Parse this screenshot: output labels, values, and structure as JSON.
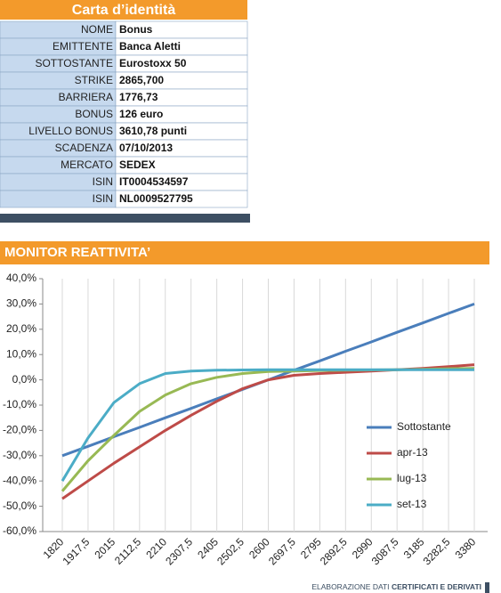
{
  "table": {
    "title": "Carta d’identità",
    "rows": [
      [
        "NOME",
        "Bonus"
      ],
      [
        "EMITTENTE",
        "Banca Aletti"
      ],
      [
        "SOTTOSTANTE",
        "Eurostoxx 50"
      ],
      [
        "STRIKE",
        "2865,700"
      ],
      [
        "BARRIERA",
        "1776,73"
      ],
      [
        "BONUS",
        "126 euro"
      ],
      [
        "LIVELLO BONUS",
        "3610,78 punti"
      ],
      [
        "SCADENZA",
        "07/10/2013"
      ],
      [
        "MERCATO",
        "SEDEX"
      ],
      [
        "ISIN",
        "IT0004534597"
      ],
      [
        "ISIN",
        "NL0009527795"
      ]
    ]
  },
  "chart_data": {
    "type": "line",
    "title": "MONITOR REATTIVITA’",
    "categories": [
      "1820",
      "1917,5",
      "2015",
      "2112,5",
      "2210",
      "2307,5",
      "2405",
      "2502,5",
      "2600",
      "2697,5",
      "2795",
      "2892,5",
      "2990",
      "3087,5",
      "3185",
      "3282,5",
      "3380"
    ],
    "series": [
      {
        "name": "Sottostante",
        "color": "#4a7ebb",
        "values": [
          -30,
          -26.3,
          -22.5,
          -18.8,
          -15,
          -11.3,
          -7.5,
          -3.8,
          0,
          3.8,
          7.5,
          11.3,
          15,
          18.8,
          22.5,
          26.3,
          30
        ]
      },
      {
        "name": "apr-13",
        "color": "#be4b48",
        "values": [
          -47,
          -40,
          -33,
          -26.5,
          -20,
          -14,
          -8.5,
          -3.5,
          0,
          1.8,
          2.5,
          3,
          3.5,
          4,
          4.5,
          5.2,
          6
        ]
      },
      {
        "name": "lug-13",
        "color": "#98b954",
        "values": [
          -44,
          -32,
          -22,
          -12.5,
          -6,
          -1.5,
          1,
          2.5,
          3.3,
          3.5,
          3.7,
          3.8,
          3.9,
          4,
          4.2,
          4.4,
          4.5
        ]
      },
      {
        "name": "set-13",
        "color": "#4bacc6",
        "values": [
          -40,
          -23,
          -9,
          -1.5,
          2.5,
          3.5,
          3.8,
          3.9,
          4,
          4,
          4,
          4,
          4,
          4,
          4,
          4,
          4
        ]
      }
    ],
    "ylim": [
      -60,
      40
    ],
    "yticks": [
      {
        "value": 40,
        "label": "40,0%"
      },
      {
        "value": 30,
        "label": "30,0%"
      },
      {
        "value": 20,
        "label": "20,0%"
      },
      {
        "value": 10,
        "label": "10,0%"
      },
      {
        "value": 0,
        "label": "0,0%"
      },
      {
        "value": -10,
        "label": "-10,0%"
      },
      {
        "value": -20,
        "label": "-20,0%"
      },
      {
        "value": -30,
        "label": "-30,0%"
      },
      {
        "value": -40,
        "label": "-40,0%"
      },
      {
        "value": -50,
        "label": "-50,0%"
      },
      {
        "value": -60,
        "label": "-60,0%"
      }
    ],
    "legend": "right"
  },
  "footer": {
    "prefix": "ELABORAZIONE DATI",
    "brand": "CERTIFICATI E DERIVATI"
  }
}
